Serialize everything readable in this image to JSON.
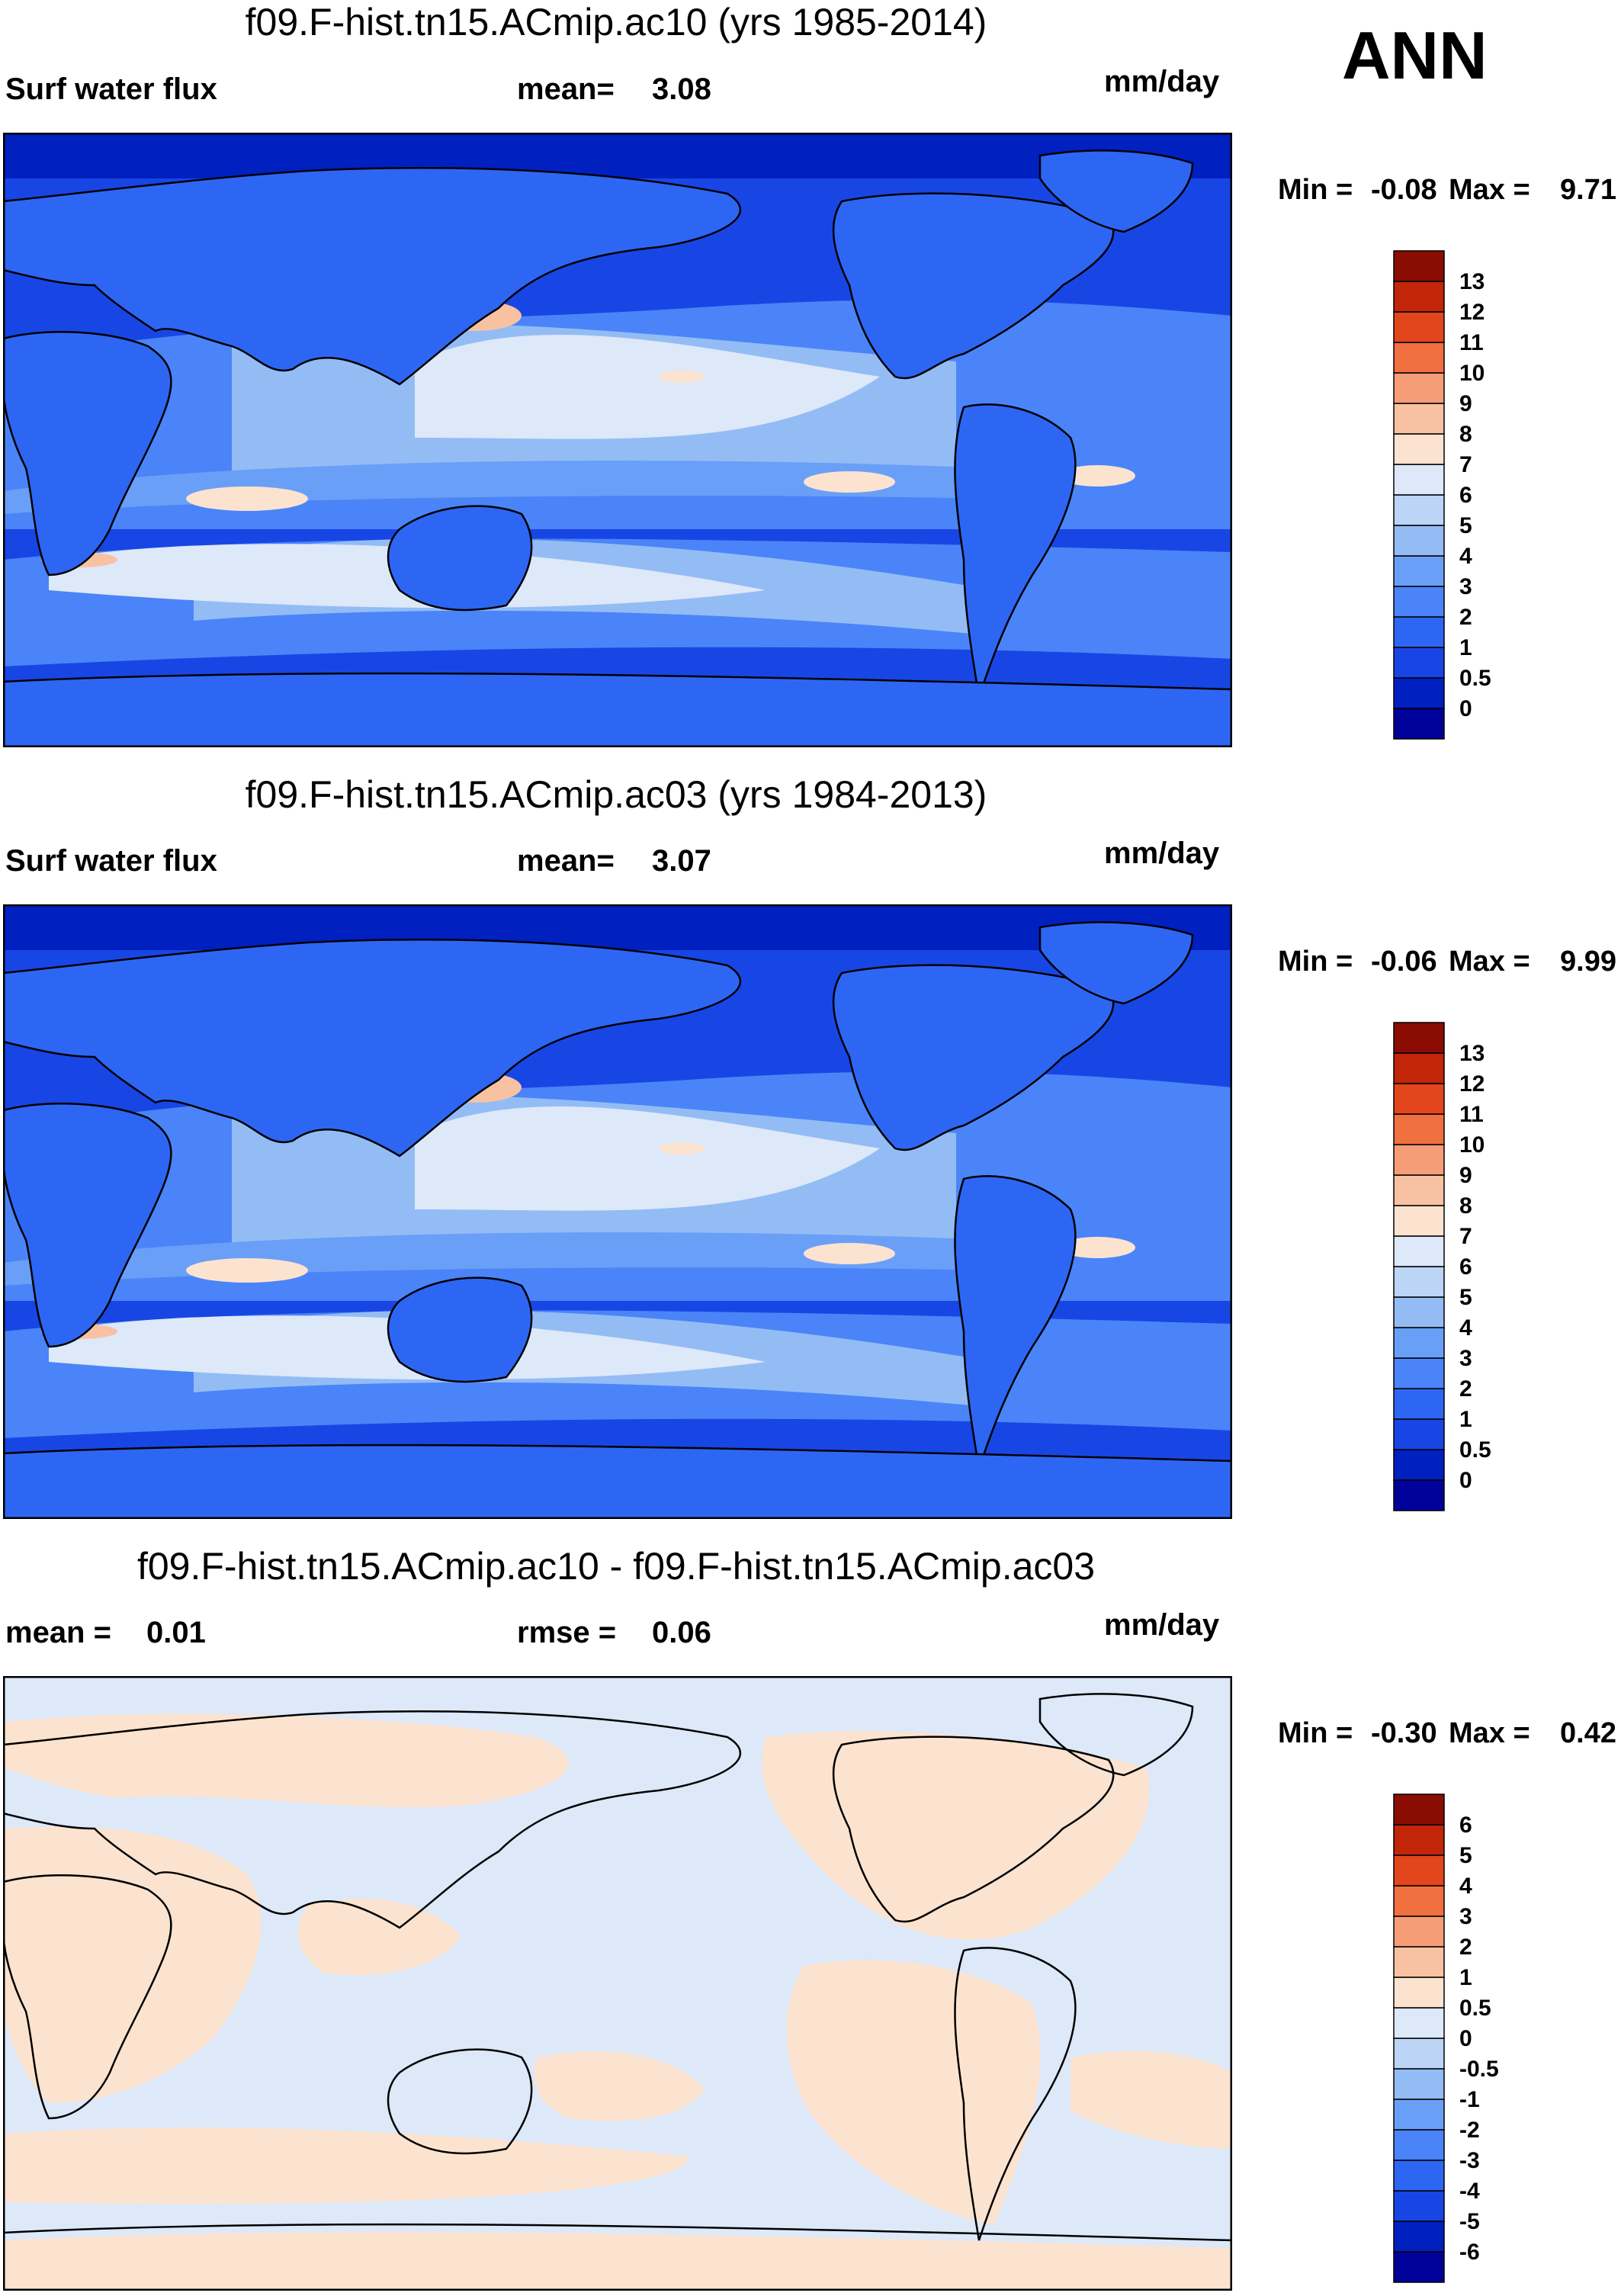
{
  "season": "ANN",
  "units": "mm/day",
  "panels": [
    {
      "title": "f09.F-hist.tn15.ACmip.ac10 (yrs 1985-2014)",
      "left_label": "Surf water flux",
      "stat_label": "mean=",
      "stat_value": "3.08",
      "units": "mm/day",
      "min_label": "Min =",
      "min_value": "-0.08",
      "max_label": "Max =",
      "max_value": "9.71",
      "colorbar_levels": [
        "13",
        "12",
        "11",
        "10",
        "9",
        "8",
        "7",
        "6",
        "5",
        "4",
        "3",
        "2",
        "1",
        "0.5",
        "0"
      ]
    },
    {
      "title": "f09.F-hist.tn15.ACmip.ac03 (yrs 1984-2013)",
      "left_label": "Surf water flux",
      "stat_label": "mean=",
      "stat_value": "3.07",
      "units": "mm/day",
      "min_label": "Min =",
      "min_value": "-0.06",
      "max_label": "Max =",
      "max_value": "9.99",
      "colorbar_levels": [
        "13",
        "12",
        "11",
        "10",
        "9",
        "8",
        "7",
        "6",
        "5",
        "4",
        "3",
        "2",
        "1",
        "0.5",
        "0"
      ]
    },
    {
      "title": "f09.F-hist.tn15.ACmip.ac10 - f09.F-hist.tn15.ACmip.ac03",
      "left_label": "mean =",
      "left_value": "0.01",
      "stat_label": "rmse =",
      "stat_value": "0.06",
      "units": "mm/day",
      "min_label": "Min =",
      "min_value": "-0.30",
      "max_label": "Max =",
      "max_value": "0.42",
      "colorbar_levels": [
        "6",
        "5",
        "4",
        "3",
        "2",
        "1",
        "0.5",
        "0",
        "-0.5",
        "-1",
        "-2",
        "-3",
        "-4",
        "-5",
        "-6"
      ]
    }
  ],
  "chart_data": [
    {
      "type": "heatmap",
      "title": "f09.F-hist.tn15.ACmip.ac10 (yrs 1985-2014)",
      "variable": "Surf water flux",
      "units": "mm/day",
      "mean": 3.08,
      "min": -0.08,
      "max": 9.71,
      "contour_levels": [
        0,
        0.5,
        1,
        2,
        3,
        4,
        5,
        6,
        7,
        8,
        9,
        10,
        11,
        12,
        13
      ],
      "colors": [
        "#00009a",
        "#0020c0",
        "#1846e4",
        "#2e66f4",
        "#4a84f8",
        "#6a9ff7",
        "#93bcf5",
        "#bcd4f6",
        "#dde8f8",
        "#fbe3d0",
        "#f8c2a2",
        "#f59d77",
        "#f0703f",
        "#e3461c",
        "#c22508",
        "#8a0c02"
      ]
    },
    {
      "type": "heatmap",
      "title": "f09.F-hist.tn15.ACmip.ac03 (yrs 1984-2013)",
      "variable": "Surf water flux",
      "units": "mm/day",
      "mean": 3.07,
      "min": -0.06,
      "max": 9.99,
      "contour_levels": [
        0,
        0.5,
        1,
        2,
        3,
        4,
        5,
        6,
        7,
        8,
        9,
        10,
        11,
        12,
        13
      ],
      "colors": [
        "#00009a",
        "#0020c0",
        "#1846e4",
        "#2e66f4",
        "#4a84f8",
        "#6a9ff7",
        "#93bcf5",
        "#bcd4f6",
        "#dde8f8",
        "#fbe3d0",
        "#f8c2a2",
        "#f59d77",
        "#f0703f",
        "#e3461c",
        "#c22508",
        "#8a0c02"
      ]
    },
    {
      "type": "heatmap",
      "title": "f09.F-hist.tn15.ACmip.ac10 - f09.F-hist.tn15.ACmip.ac03",
      "units": "mm/day",
      "mean": 0.01,
      "rmse": 0.06,
      "min": -0.3,
      "max": 0.42,
      "contour_levels": [
        -6,
        -5,
        -4,
        -3,
        -2,
        -1,
        -0.5,
        0,
        0.5,
        1,
        2,
        3,
        4,
        5,
        6
      ],
      "colors": [
        "#00009a",
        "#0020c0",
        "#1846e4",
        "#2e66f4",
        "#4a84f8",
        "#6a9ff7",
        "#93bcf5",
        "#bcd4f6",
        "#dde8f8",
        "#fbe3d0",
        "#f8c2a2",
        "#f59d77",
        "#f0703f",
        "#e3461c",
        "#c22508",
        "#8a0c02"
      ]
    }
  ]
}
